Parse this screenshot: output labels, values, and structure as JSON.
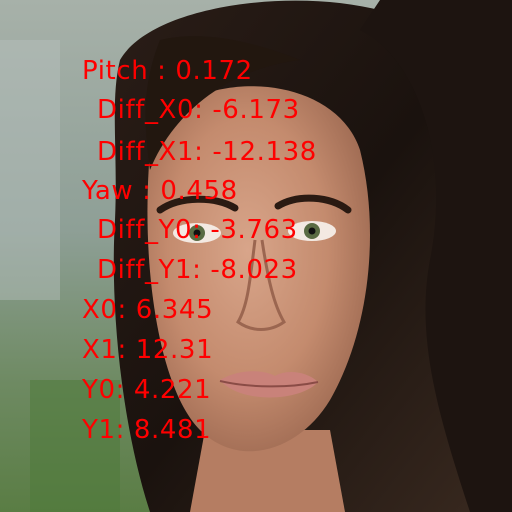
{
  "overlay": {
    "color": "#ff0000",
    "lines": [
      "Pitch : 0.172",
      "Diff_X0: -6.173",
      "Diff_X1: -12.138",
      "Yaw : 0.458",
      "Diff_Y0: -3.763",
      "Diff_Y1: -8.023",
      "X0: 6.345",
      "X1: 12.31",
      "Y0: 4.221",
      "Y1: 8.481"
    ]
  }
}
